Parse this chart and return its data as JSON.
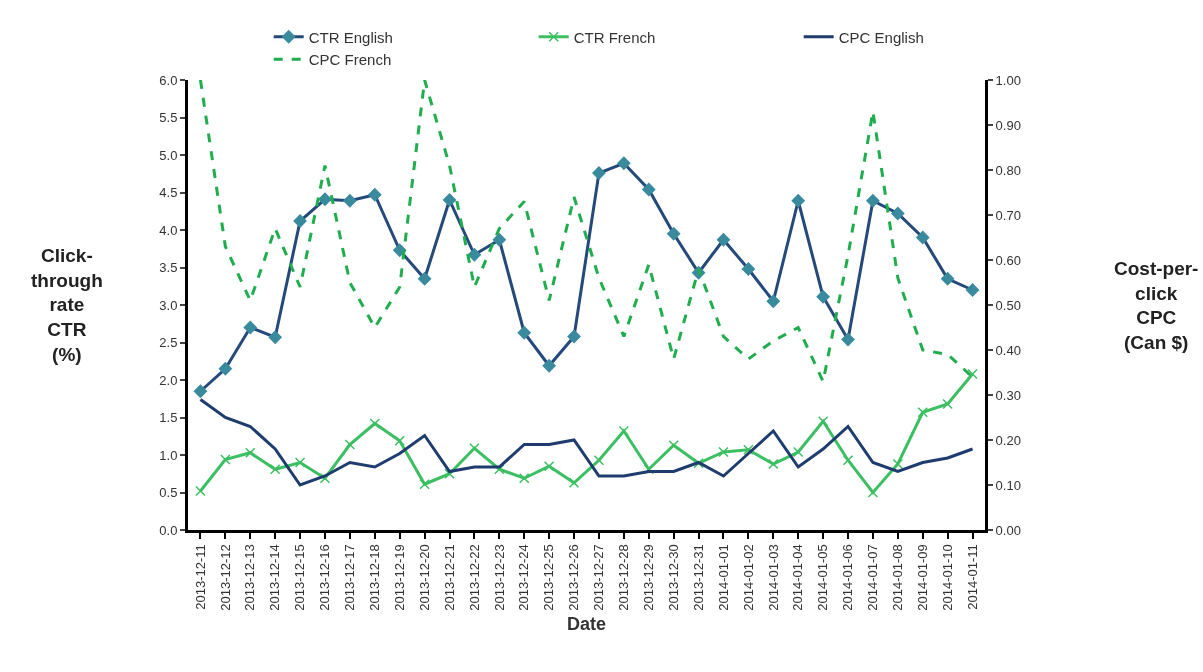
{
  "chart_data": {
    "type": "line",
    "xlabel": "Date",
    "ylabel": "Click-\nthrough\nrate\nCTR\n(%)",
    "y2label": "Cost-per-\nclick\nCPC\n(Can $)",
    "categories": [
      "2013-12-11",
      "2013-12-12",
      "2013-12-13",
      "2013-12-14",
      "2013-12-15",
      "2013-12-16",
      "2013-12-17",
      "2013-12-18",
      "2013-12-19",
      "2013-12-20",
      "2013-12-21",
      "2013-12-22",
      "2013-12-23",
      "2013-12-24",
      "2013-12-25",
      "2013-12-26",
      "2013-12-27",
      "2013-12-28",
      "2013-12-29",
      "2013-12-30",
      "2013-12-31",
      "2014-01-01",
      "2014-01-02",
      "2014-01-03",
      "2014-01-04",
      "2014-01-05",
      "2014-01-06",
      "2014-01-07",
      "2014-01-08",
      "2014-01-09",
      "2014-01-10",
      "2014-01-11"
    ],
    "series": [
      {
        "name": "CTR English",
        "color": "#24497a",
        "marker": "diamond",
        "line_style": "solid",
        "values": [
          1.85,
          2.15,
          2.7,
          2.57,
          4.12,
          4.41,
          4.39,
          4.47,
          3.73,
          3.35,
          4.4,
          3.67,
          3.87,
          2.63,
          2.19,
          2.58,
          4.76,
          4.89,
          4.54,
          3.95,
          3.43,
          3.87,
          3.48,
          3.05,
          4.39,
          3.11,
          2.54,
          4.39,
          4.22,
          3.9,
          3.35,
          3.2
        ]
      },
      {
        "name": "CTR French",
        "color": "#3cbf62",
        "marker": "cross",
        "line_style": "solid",
        "values": [
          0.52,
          0.94,
          1.03,
          0.81,
          0.9,
          0.69,
          1.14,
          1.42,
          1.19,
          0.61,
          0.75,
          1.09,
          0.81,
          0.69,
          0.85,
          0.63,
          0.93,
          1.32,
          0.81,
          1.13,
          0.89,
          1.04,
          1.07,
          0.88,
          1.04,
          1.45,
          0.93,
          0.5,
          0.88,
          1.57,
          1.68,
          2.08
        ]
      },
      {
        "name": "CPC English",
        "color": "#1f3c6e",
        "marker": "none",
        "line_style": "solid",
        "axis": "y2",
        "values": [
          0.29,
          0.25,
          0.23,
          0.18,
          0.1,
          0.12,
          0.15,
          0.14,
          0.17,
          0.21,
          0.13,
          0.14,
          0.14,
          0.19,
          0.19,
          0.2,
          0.12,
          0.12,
          0.13,
          0.13,
          0.15,
          0.12,
          0.17,
          0.22,
          0.14,
          0.18,
          0.23,
          0.15,
          0.13,
          0.15,
          0.16,
          0.18
        ]
      },
      {
        "name": "CPC French",
        "color": "#20ad4e",
        "marker": "none",
        "line_style": "dashed",
        "axis": "y2",
        "values": [
          1.0,
          0.63,
          0.51,
          0.67,
          0.54,
          0.81,
          0.55,
          0.45,
          0.54,
          1.0,
          0.81,
          0.54,
          0.67,
          0.73,
          0.51,
          0.74,
          0.56,
          0.43,
          0.59,
          0.38,
          0.58,
          0.43,
          0.38,
          0.42,
          0.45,
          0.33,
          0.61,
          0.93,
          0.56,
          0.4,
          0.39,
          0.34
        ]
      }
    ],
    "ylim": [
      0,
      6
    ],
    "yticks": [
      {
        "value": 0,
        "label": "0.0"
      },
      {
        "value": 0.5,
        "label": "0.5"
      },
      {
        "value": 1,
        "label": "1.0"
      },
      {
        "value": 1.5,
        "label": "1.5"
      },
      {
        "value": 2,
        "label": "2.0"
      },
      {
        "value": 2.5,
        "label": "2.5"
      },
      {
        "value": 3,
        "label": "3.0"
      },
      {
        "value": 3.5,
        "label": "3.5"
      },
      {
        "value": 4,
        "label": "4.0"
      },
      {
        "value": 4.5,
        "label": "4.5"
      },
      {
        "value": 5,
        "label": "5.0"
      },
      {
        "value": 5.5,
        "label": "5.5"
      },
      {
        "value": 6,
        "label": "6.0"
      }
    ],
    "y2lim": [
      0,
      1
    ],
    "y2ticks": [
      {
        "value": 0,
        "label": "0.00"
      },
      {
        "value": 0.1,
        "label": "0.10"
      },
      {
        "value": 0.2,
        "label": "0.20"
      },
      {
        "value": 0.3,
        "label": "0.30"
      },
      {
        "value": 0.4,
        "label": "0.40"
      },
      {
        "value": 0.5,
        "label": "0.50"
      },
      {
        "value": 0.6,
        "label": "0.60"
      },
      {
        "value": 0.7,
        "label": "0.70"
      },
      {
        "value": 0.8,
        "label": "0.80"
      },
      {
        "value": 0.9,
        "label": "0.90"
      },
      {
        "value": 1,
        "label": "1.00"
      }
    ],
    "legend": "top"
  }
}
